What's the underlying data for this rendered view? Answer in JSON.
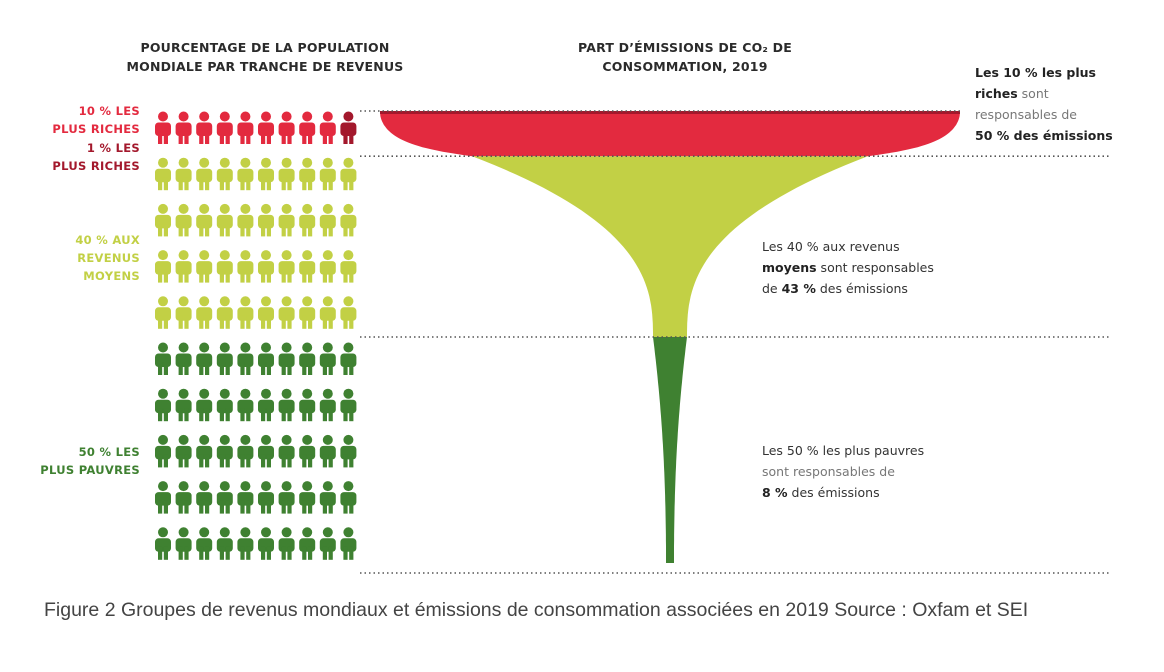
{
  "chart_data": {
    "type": "funnel",
    "headers": {
      "population": [
        "POURCENTAGE DE LA POPULATION",
        "MONDIALE PAR TRANCHE DE REVENUS"
      ],
      "emissions": [
        "PART D’ÉMISSIONS DE CO₂ DE",
        "CONSOMMATION, 2019"
      ]
    },
    "groups": [
      {
        "label_lines": [
          "10 % LES",
          "PLUS RICHES"
        ],
        "population_share": 10,
        "emission_share": 50,
        "color": "#e32a3f",
        "icon_rows": 1,
        "note": [
          [
            {
              "t": "Les 10 % les plus",
              "s": "b"
            }
          ],
          [
            {
              "t": "riches",
              "s": "b"
            },
            {
              "t": " sont",
              "s": "m"
            }
          ],
          [
            {
              "t": "responsables de",
              "s": "m"
            }
          ],
          [
            {
              "t": "50 % des émissions",
              "s": "b"
            }
          ]
        ]
      },
      {
        "label_lines": [
          "40 % AUX",
          "REVENUS",
          "MOYENS"
        ],
        "population_share": 40,
        "emission_share": 43,
        "color": "#c2d045",
        "icon_rows": 4,
        "note": [
          [
            {
              "t": "Les 40 % aux revenus",
              "s": "r"
            }
          ],
          [
            {
              "t": "moyens",
              "s": "b"
            },
            {
              "t": " sont responsables",
              "s": "r"
            }
          ],
          [
            {
              "t": "de ",
              "s": "r"
            },
            {
              "t": "43 %",
              "s": "b"
            },
            {
              "t": " des émissions",
              "s": "r"
            }
          ]
        ]
      },
      {
        "label_lines": [
          "50 % LES",
          "PLUS PAUVRES"
        ],
        "population_share": 50,
        "emission_share": 8,
        "color": "#3f8131",
        "icon_rows": 5,
        "note": [
          [
            {
              "t": "Les 50 % les plus pauvres",
              "s": "r"
            }
          ],
          [
            {
              "t": "sont responsables de",
              "s": "m"
            }
          ],
          [
            {
              "t": "8 %",
              "s": "b"
            },
            {
              "t": " des émissions",
              "s": "r"
            }
          ]
        ]
      }
    ],
    "sub_group": {
      "label_lines": [
        "1 % LES",
        "PLUS RICHES"
      ],
      "population_share": 1,
      "color": "#a3182c"
    },
    "icons_per_row": 10
  },
  "caption": "Figure 2 Groupes de revenus mondiaux et émissions de consommation associées en 2019 Source : Oxfam et SEI"
}
